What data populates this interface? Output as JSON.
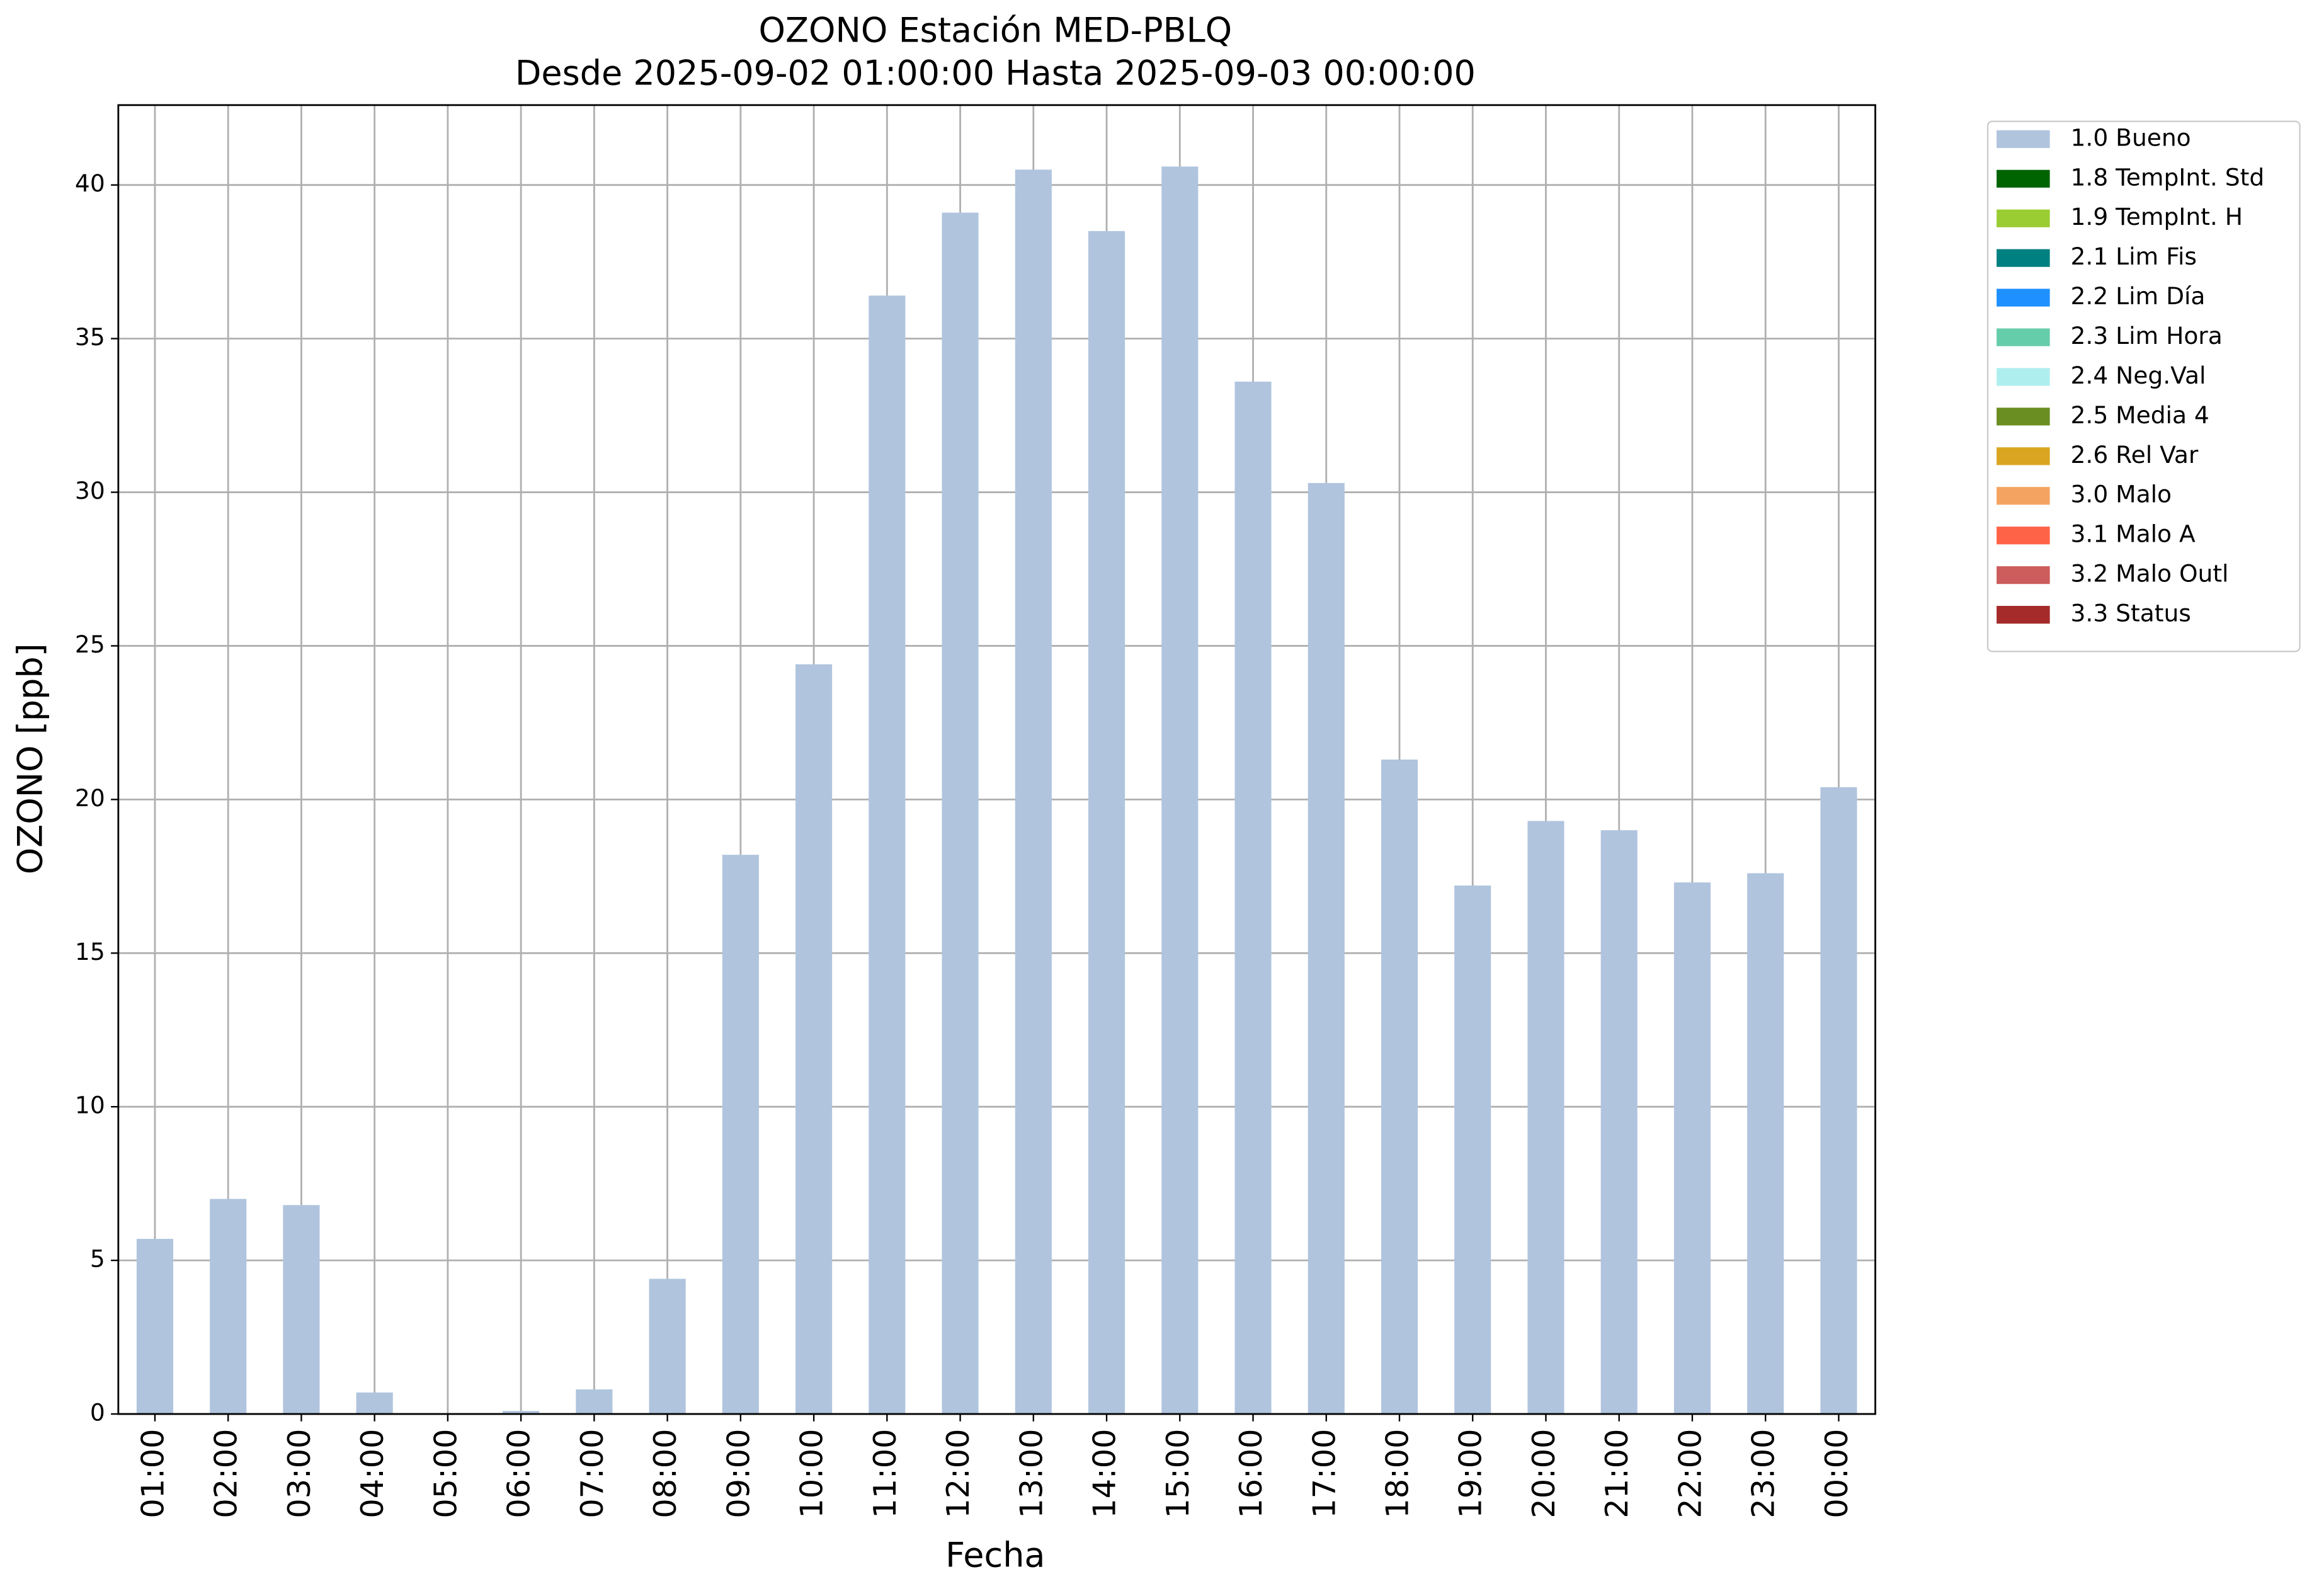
{
  "chart_data": {
    "type": "bar",
    "title": "OZONO Estación MED-PBLQ",
    "subtitle": "Desde 2025-09-02 01:00:00 Hasta 2025-09-03 00:00:00",
    "x_label": "Fecha",
    "y_label": "OZONO [ppb]",
    "categories": [
      "01:00",
      "02:00",
      "03:00",
      "04:00",
      "05:00",
      "06:00",
      "07:00",
      "08:00",
      "09:00",
      "10:00",
      "11:00",
      "12:00",
      "13:00",
      "14:00",
      "15:00",
      "16:00",
      "17:00",
      "18:00",
      "19:00",
      "20:00",
      "21:00",
      "22:00",
      "23:00",
      "00:00"
    ],
    "series": [
      {
        "name": "1.0 Bueno",
        "color": "#b0c4de",
        "values": [
          5.7,
          7.0,
          6.8,
          0.7,
          0,
          0.1,
          0.8,
          4.4,
          18.2,
          24.4,
          36.4,
          39.1,
          40.5,
          38.5,
          40.6,
          33.6,
          30.3,
          21.3,
          17.2,
          19.3,
          19.0,
          17.3,
          17.6,
          20.4
        ]
      },
      {
        "name": "1.8 TempInt. Std",
        "color": "#006400",
        "values": [
          null,
          null,
          null,
          null,
          null,
          null,
          null,
          null,
          null,
          null,
          null,
          null,
          null,
          null,
          null,
          null,
          null,
          null,
          null,
          null,
          null,
          null,
          null,
          null
        ]
      },
      {
        "name": "1.9 TempInt. H",
        "color": "#9acd32",
        "values": [
          null,
          null,
          null,
          null,
          null,
          null,
          null,
          null,
          null,
          null,
          null,
          null,
          null,
          null,
          null,
          null,
          null,
          null,
          null,
          null,
          null,
          null,
          null,
          null
        ]
      },
      {
        "name": "2.1 Lim Fis",
        "color": "#008080",
        "values": [
          null,
          null,
          null,
          null,
          null,
          null,
          null,
          null,
          null,
          null,
          null,
          null,
          null,
          null,
          null,
          null,
          null,
          null,
          null,
          null,
          null,
          null,
          null,
          null
        ]
      },
      {
        "name": "2.2 Lim Día",
        "color": "#1e90ff",
        "values": [
          null,
          null,
          null,
          null,
          null,
          null,
          null,
          null,
          null,
          null,
          null,
          null,
          null,
          null,
          null,
          null,
          null,
          null,
          null,
          null,
          null,
          null,
          null,
          null
        ]
      },
      {
        "name": "2.3 Lim Hora",
        "color": "#66cdaa",
        "values": [
          null,
          null,
          null,
          null,
          null,
          null,
          null,
          null,
          null,
          null,
          null,
          null,
          null,
          null,
          null,
          null,
          null,
          null,
          null,
          null,
          null,
          null,
          null,
          null
        ]
      },
      {
        "name": "2.4 Neg.Val",
        "color": "#afeeee",
        "values": [
          null,
          null,
          null,
          null,
          null,
          null,
          null,
          null,
          null,
          null,
          null,
          null,
          null,
          null,
          null,
          null,
          null,
          null,
          null,
          null,
          null,
          null,
          null,
          null
        ]
      },
      {
        "name": "2.5 Media 4",
        "color": "#6b8e23",
        "values": [
          null,
          null,
          null,
          null,
          null,
          null,
          null,
          null,
          null,
          null,
          null,
          null,
          null,
          null,
          null,
          null,
          null,
          null,
          null,
          null,
          null,
          null,
          null,
          null
        ]
      },
      {
        "name": "2.6 Rel Var",
        "color": "#daa520",
        "values": [
          null,
          null,
          null,
          null,
          null,
          null,
          null,
          null,
          null,
          null,
          null,
          null,
          null,
          null,
          null,
          null,
          null,
          null,
          null,
          null,
          null,
          null,
          null,
          null
        ]
      },
      {
        "name": "3.0 Malo",
        "color": "#f4a460",
        "values": [
          null,
          null,
          null,
          null,
          null,
          null,
          null,
          null,
          null,
          null,
          null,
          null,
          null,
          null,
          null,
          null,
          null,
          null,
          null,
          null,
          null,
          null,
          null,
          null
        ]
      },
      {
        "name": "3.1 Malo A",
        "color": "#ff6347",
        "values": [
          null,
          null,
          null,
          null,
          null,
          null,
          null,
          null,
          null,
          null,
          null,
          null,
          null,
          null,
          null,
          null,
          null,
          null,
          null,
          null,
          null,
          null,
          null,
          null
        ]
      },
      {
        "name": "3.2 Malo Outl",
        "color": "#cd5c5c",
        "values": [
          null,
          null,
          null,
          null,
          null,
          null,
          null,
          null,
          null,
          null,
          null,
          null,
          null,
          null,
          null,
          null,
          null,
          null,
          null,
          null,
          null,
          null,
          null,
          null
        ]
      },
      {
        "name": "3.3 Status",
        "color": "#a52a2a",
        "values": [
          null,
          null,
          null,
          null,
          null,
          null,
          null,
          null,
          null,
          null,
          null,
          null,
          null,
          null,
          null,
          null,
          null,
          null,
          null,
          null,
          null,
          null,
          null,
          null
        ]
      }
    ],
    "ylim": [
      0,
      42.6
    ],
    "yticks": [
      0,
      5,
      10,
      15,
      20,
      25,
      30,
      35,
      40
    ],
    "grid": true,
    "legend": "outside-upper-right"
  }
}
